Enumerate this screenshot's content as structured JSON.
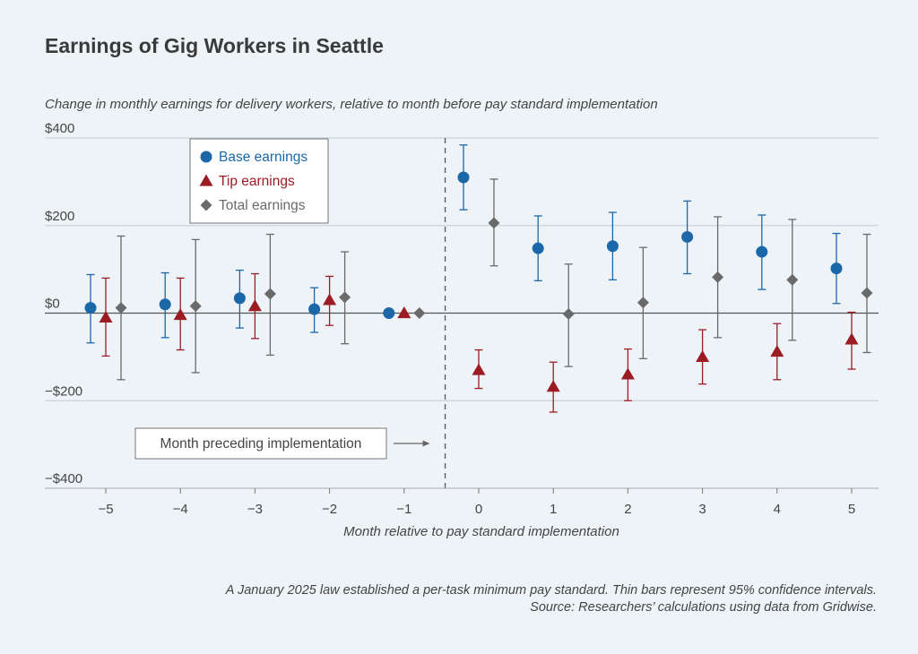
{
  "chart_data": {
    "type": "scatter",
    "title": "Earnings of Gig Workers in Seattle",
    "subtitle": "Change in monthly earnings for delivery workers, relative to month before pay standard implementation",
    "xlabel": "Month relative to pay standard implementation",
    "ylabel": "",
    "x": [
      -5,
      -4,
      -3,
      -2,
      -1,
      0,
      1,
      2,
      3,
      4,
      5
    ],
    "x_tick_labels": [
      "−5",
      "−4",
      "−3",
      "−2",
      "−1",
      "0",
      "1",
      "2",
      "3",
      "4",
      "5"
    ],
    "ylim": [
      -400,
      400
    ],
    "y_ticks": [
      400,
      200,
      0,
      -200,
      -400
    ],
    "y_tick_labels": [
      "$400",
      "$200",
      "$0",
      "−$200",
      "−$400"
    ],
    "grid": true,
    "legend_position": "top-left",
    "series": [
      {
        "name": "Base earnings",
        "marker": "circle",
        "color": "#1b67a8",
        "values": [
          12,
          20,
          34,
          9,
          0,
          310,
          148,
          153,
          174,
          140,
          102
        ],
        "ci_low": [
          -68,
          -56,
          -34,
          -44,
          0,
          236,
          74,
          76,
          90,
          54,
          22
        ],
        "ci_high": [
          88,
          92,
          98,
          58,
          0,
          384,
          222,
          230,
          256,
          224,
          182
        ]
      },
      {
        "name": "Tip earnings",
        "marker": "triangle",
        "color": "#9c1c24",
        "values": [
          -10,
          -4,
          16,
          30,
          0,
          -130,
          -168,
          -140,
          -100,
          -88,
          -60
        ],
        "ci_low": [
          -98,
          -84,
          -58,
          -28,
          0,
          -172,
          -226,
          -200,
          -162,
          -152,
          -128
        ],
        "ci_high": [
          80,
          80,
          90,
          84,
          0,
          -84,
          -112,
          -82,
          -38,
          -24,
          2
        ]
      },
      {
        "name": "Total earnings",
        "marker": "diamond",
        "color": "#6a6a6a",
        "values": [
          12,
          16,
          44,
          36,
          0,
          206,
          -2,
          24,
          82,
          76,
          46
        ],
        "ci_low": [
          -152,
          -136,
          -96,
          -70,
          0,
          108,
          -122,
          -104,
          -56,
          -62,
          -90
        ],
        "ci_high": [
          176,
          168,
          180,
          140,
          0,
          306,
          112,
          150,
          220,
          214,
          180
        ]
      }
    ],
    "annotations": [
      {
        "text": "Month preceding implementation",
        "x": -0.45
      }
    ]
  },
  "footnote": {
    "line1": "A January 2025 law established a per-task minimum pay standard. Thin bars represent 95% confidence intervals.",
    "line2": "Source: Researchers’ calculations using data from Gridwise."
  }
}
